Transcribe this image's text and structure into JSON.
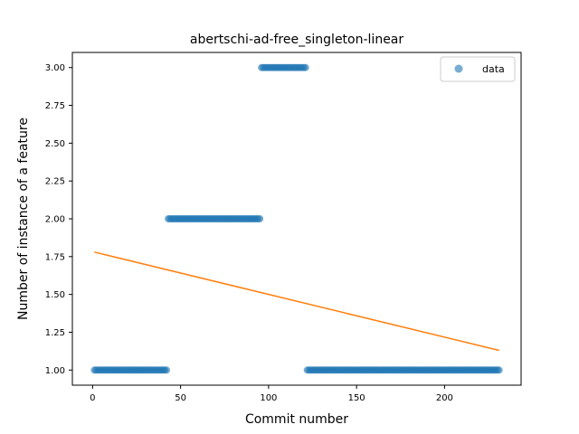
{
  "chart_data": {
    "type": "scatter",
    "title": "abertschi-ad-free_singleton-linear",
    "xlabel": "Commit number",
    "ylabel": "Number of instance of a feature",
    "xlim": [
      -11.5,
      243.5
    ],
    "ylim": [
      0.9,
      3.1
    ],
    "xticks": [
      0,
      50,
      100,
      150,
      200
    ],
    "yticks": [
      1.0,
      1.25,
      1.5,
      1.75,
      2.0,
      2.25,
      2.5,
      2.75,
      3.0
    ],
    "legend": {
      "position": "top-right",
      "entries": [
        "data"
      ]
    },
    "colors": {
      "data": "#1f77b4",
      "fit": "#ff7f0e"
    },
    "series": [
      {
        "name": "data",
        "kind": "scatter",
        "segments": [
          {
            "x_start": 1,
            "x_end": 42,
            "y": 1
          },
          {
            "x_start": 43,
            "x_end": 95,
            "y": 2
          },
          {
            "x_start": 96,
            "x_end": 121,
            "y": 3
          },
          {
            "x_start": 122,
            "x_end": 231,
            "y": 1
          }
        ]
      },
      {
        "kind": "line",
        "x": [
          1,
          231
        ],
        "y": [
          1.78,
          1.13
        ]
      }
    ]
  }
}
